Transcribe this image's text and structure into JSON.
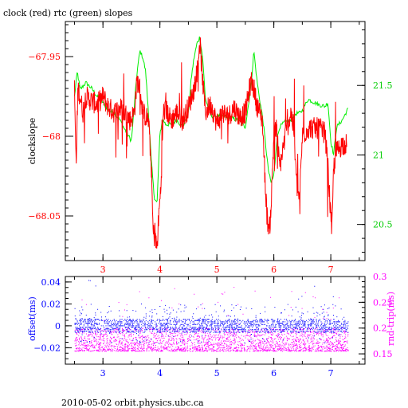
{
  "title": "clock (red) rtc (green) slopes",
  "footer": "2010-05-02 orbit.physics.ubc.ca",
  "colors": {
    "frame": "#000000",
    "clock": "#ff0000",
    "rtc": "#00ee00",
    "offset": "#0000ff",
    "roundtrip": "#ff00ff",
    "red_axis": "#ff0000",
    "green_axis": "#00cc00",
    "blue_axis": "#0000ff",
    "magenta_axis": "#ff00ff"
  },
  "chart_data": [
    {
      "type": "line",
      "title": "clock (red) rtc (green) slopes",
      "xlim": [
        2.34,
        7.6
      ],
      "xticks": [
        "3",
        "4",
        "5",
        "6",
        "7"
      ],
      "ylabel": "clockslope",
      "ylim": [
        -68.078,
        -67.928
      ],
      "yticks": [
        "-67.95",
        "-68",
        "-68.05"
      ],
      "y2lim": [
        20.24,
        21.96
      ],
      "y2ticks": [
        "21.5",
        "21",
        "20.5"
      ],
      "series": [
        {
          "name": "clock",
          "axis": "left",
          "x": [
            2.5,
            2.53,
            2.56,
            2.6,
            2.65,
            2.7,
            2.8,
            2.9,
            3.0,
            3.1,
            3.2,
            3.3,
            3.4,
            3.48,
            3.55,
            3.6,
            3.65,
            3.7,
            3.8,
            3.85,
            3.88,
            3.92,
            3.95,
            3.98,
            4.02,
            4.06,
            4.1,
            4.2,
            4.3,
            4.4,
            4.5,
            4.6,
            4.65,
            4.7,
            4.75,
            4.8,
            4.85,
            4.9,
            5.0,
            5.1,
            5.2,
            5.3,
            5.4,
            5.5,
            5.6,
            5.65,
            5.7,
            5.75,
            5.8,
            5.85,
            5.88,
            5.92,
            5.95,
            6.0,
            6.05,
            6.1,
            6.2,
            6.3,
            6.35,
            6.4,
            6.45,
            6.5,
            6.6,
            6.7,
            6.8,
            6.9,
            6.95,
            7.0,
            7.02,
            7.05,
            7.1,
            7.2,
            7.28
          ],
          "y": [
            -67.97,
            -68.02,
            -67.97,
            -67.975,
            -67.985,
            -67.975,
            -67.978,
            -67.98,
            -67.975,
            -67.982,
            -67.985,
            -67.982,
            -67.986,
            -67.99,
            -67.985,
            -67.965,
            -67.97,
            -67.985,
            -67.99,
            -68.02,
            -68.06,
            -68.065,
            -68.07,
            -68.05,
            -68.03,
            -67.985,
            -67.983,
            -67.99,
            -67.985,
            -67.99,
            -67.982,
            -67.97,
            -67.96,
            -67.94,
            -67.965,
            -67.985,
            -67.982,
            -67.98,
            -67.992,
            -67.985,
            -67.988,
            -67.982,
            -67.988,
            -67.985,
            -67.965,
            -67.97,
            -67.98,
            -67.985,
            -67.99,
            -68.03,
            -68.05,
            -68.06,
            -68.045,
            -68.0,
            -67.995,
            -68.02,
            -68.0,
            -67.985,
            -67.995,
            -68.03,
            -68.04,
            -68.0,
            -67.995,
            -67.995,
            -67.995,
            -67.998,
            -68.02,
            -68.05,
            -68.06,
            -68.02,
            -68.01,
            -68.005,
            -68.005
          ]
        },
        {
          "name": "rtc",
          "axis": "right",
          "x": [
            2.5,
            2.55,
            2.6,
            2.7,
            2.8,
            2.9,
            3.0,
            3.1,
            3.2,
            3.3,
            3.4,
            3.5,
            3.55,
            3.6,
            3.65,
            3.7,
            3.75,
            3.8,
            3.85,
            3.9,
            3.95,
            4.0,
            4.05,
            4.1,
            4.2,
            4.3,
            4.4,
            4.5,
            4.55,
            4.6,
            4.65,
            4.7,
            4.75,
            4.8,
            4.9,
            5.0,
            5.1,
            5.2,
            5.3,
            5.4,
            5.5,
            5.6,
            5.65,
            5.7,
            5.75,
            5.8,
            5.85,
            5.9,
            5.95,
            6.0,
            6.05,
            6.1,
            6.2,
            6.3,
            6.35,
            6.4,
            6.45,
            6.5,
            6.6,
            6.7,
            6.8,
            6.9,
            6.95,
            7.0,
            7.05,
            7.1,
            7.2,
            7.3
          ],
          "y": [
            21.42,
            21.6,
            21.47,
            21.52,
            21.48,
            21.42,
            21.38,
            21.32,
            21.3,
            21.25,
            21.17,
            21.1,
            21.35,
            21.6,
            21.75,
            21.7,
            21.6,
            21.3,
            20.95,
            20.7,
            20.65,
            21.15,
            21.26,
            21.22,
            21.22,
            21.25,
            21.2,
            21.3,
            21.55,
            21.7,
            21.8,
            21.85,
            21.7,
            21.4,
            21.28,
            21.28,
            21.28,
            21.27,
            21.26,
            21.24,
            21.2,
            21.5,
            21.75,
            21.55,
            21.4,
            21.28,
            21.1,
            20.9,
            20.8,
            20.85,
            21.1,
            21.2,
            21.24,
            21.24,
            21.28,
            21.3,
            21.3,
            21.32,
            21.4,
            21.38,
            21.36,
            21.35,
            21.38,
            21.1,
            21.0,
            21.2,
            21.25,
            21.33
          ]
        }
      ]
    },
    {
      "type": "scatter",
      "xlim": [
        2.34,
        7.6
      ],
      "xticks": [
        "3",
        "4",
        "5",
        "6",
        "7"
      ],
      "ylabel": "offset(ms)",
      "ylim": [
        -0.035,
        0.045
      ],
      "yticks": [
        "0.04",
        "0.02",
        "0",
        "-0.02"
      ],
      "y2label": "rnd-trip(ms)",
      "y2lim": [
        0.13,
        0.3
      ],
      "y2ticks": [
        "0.3",
        "0.25",
        "0.2",
        "0.15"
      ],
      "series": [
        {
          "name": "offset",
          "axis": "left",
          "x_range": [
            2.5,
            7.3
          ],
          "typical_range": [
            -0.006,
            0.006
          ],
          "spike_max": 0.042
        },
        {
          "name": "rnd-trip",
          "axis": "right",
          "x_range": [
            2.5,
            7.3
          ],
          "typical_range": [
            0.155,
            0.2
          ]
        }
      ]
    }
  ]
}
